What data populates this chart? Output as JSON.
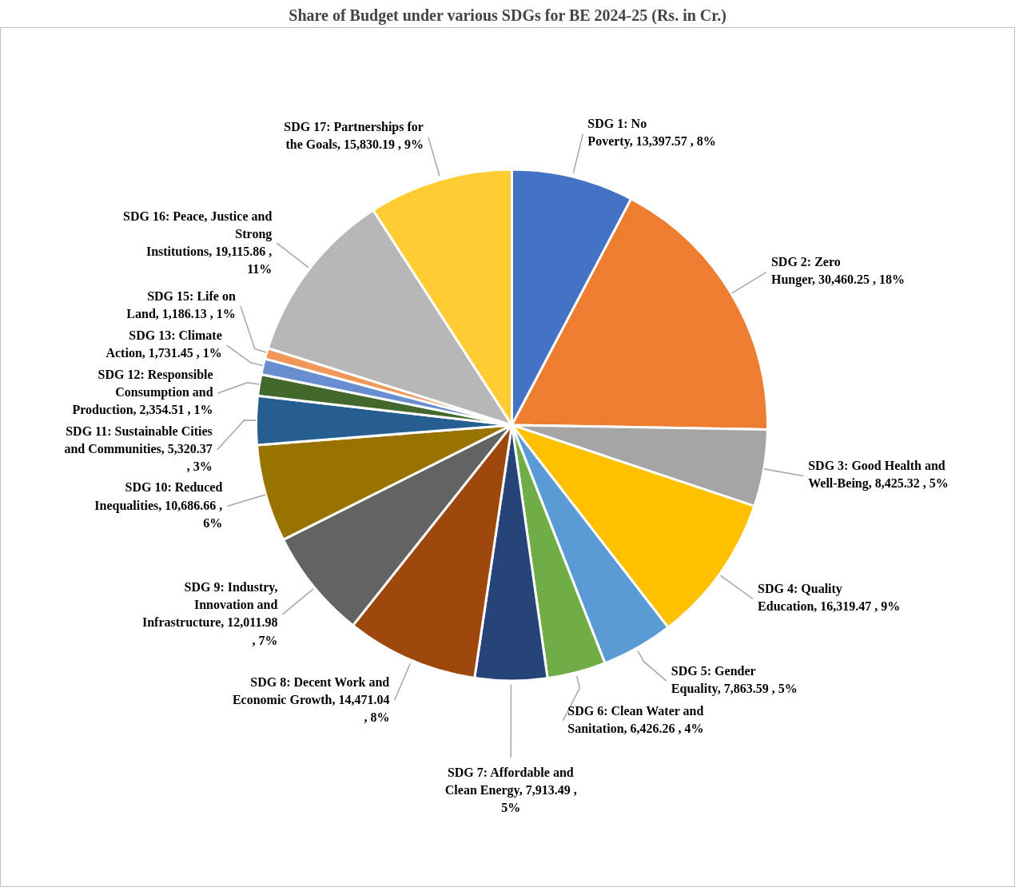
{
  "chart_data": {
    "type": "pie",
    "title": "Share of Budget under various SDGs for BE 2024-25 (Rs. in Cr.)",
    "categories": [
      "SDG 1: No Poverty",
      "SDG 2: Zero Hunger",
      "SDG 3: Good Health and Well-Being",
      "SDG 4: Quality Education",
      "SDG 5: Gender Equality",
      "SDG 6: Clean Water and Sanitation",
      "SDG 7: Affordable and Clean Energy",
      "SDG 8: Decent Work and Economic Growth",
      "SDG 9: Industry, Innovation and Infrastructure",
      "SDG 10: Reduced Inequalities",
      "SDG 11: Sustainable Cities and Communities",
      "SDG 12: Responsible Consumption and Production",
      "SDG 13: Climate Action",
      "SDG 15: Life on Land",
      "SDG 16: Peace, Justice and Strong Institutions",
      "SDG 17: Partnerships for the Goals"
    ],
    "values": [
      13397.57,
      30460.25,
      8425.32,
      16319.47,
      7863.59,
      6426.26,
      7913.49,
      14471.04,
      12011.98,
      10686.66,
      5320.37,
      2354.51,
      1731.45,
      1186.13,
      19115.86,
      15830.19
    ],
    "value_labels": [
      "13,397.57 , 8%",
      "30,460.25 , 18%",
      "8,425.32 , 5%",
      "16,319.47 , 9%",
      "7,863.59 , 5%",
      "6,426.26 , 4%",
      "7,913.49 , 5%",
      "14,471.04 , 8%",
      "12,011.98 , 7%",
      "10,686.66 , 6%",
      "5,320.37 , 3%",
      "2,354.51 , 1%",
      "1,731.45 , 1%",
      "1,186.13 , 1%",
      "19,115.86 , 11%",
      "15,830.19 , 9%"
    ],
    "colors": [
      "#4472c4",
      "#ed7d31",
      "#a5a5a5",
      "#ffc000",
      "#5b9bd5",
      "#70ad47",
      "#264478",
      "#9e480e",
      "#636363",
      "#997300",
      "#255e91",
      "#43682b",
      "#698ed0",
      "#f1975a",
      "#b7b7b7",
      "#ffcd33"
    ]
  }
}
